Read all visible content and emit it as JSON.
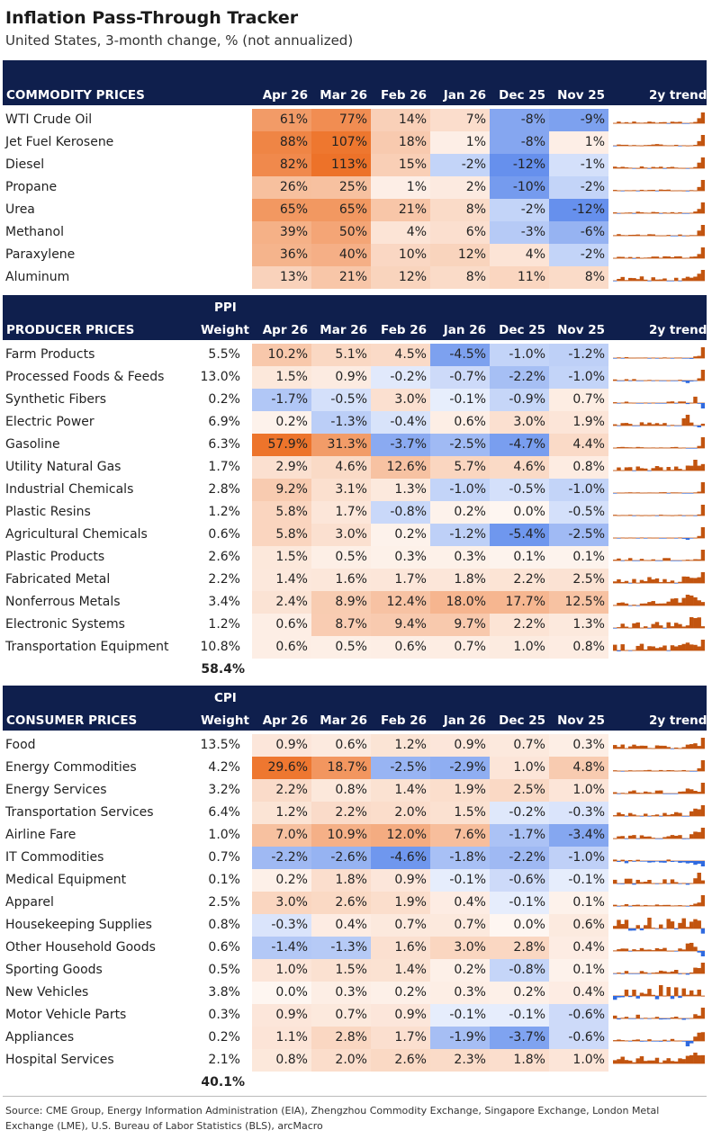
{
  "title": "Inflation Pass-Through Tracker",
  "subtitle": "United States, 3-month change, % (not annualized)",
  "months": [
    "Apr 26",
    "Mar 26",
    "Feb 26",
    "Jan 26",
    "Dec 25",
    "Nov 25"
  ],
  "trend_label": "2y trend",
  "colors": {
    "header_bg": "#0f1f4d",
    "positive": "#ec6a1c",
    "negative": "#3f74e8",
    "spark_pos": "#c2540f",
    "spark_neg": "#2f6ae0"
  },
  "chart_data": [
    {
      "type": "table",
      "section": "commodity",
      "header": "COMMODITY PRICES",
      "rows": [
        {
          "name": "WTI Crude Oil",
          "values": [
            "61%",
            "77%",
            "14%",
            "7%",
            "-8%",
            "-9%"
          ],
          "num": [
            61,
            77,
            14,
            7,
            -8,
            -9
          ]
        },
        {
          "name": "Jet Fuel Kerosene",
          "values": [
            "88%",
            "107%",
            "18%",
            "1%",
            "-8%",
            "1%"
          ],
          "num": [
            88,
            107,
            18,
            1,
            -8,
            1
          ]
        },
        {
          "name": "Diesel",
          "values": [
            "82%",
            "113%",
            "15%",
            "-2%",
            "-12%",
            "-1%"
          ],
          "num": [
            82,
            113,
            15,
            -2,
            -12,
            -1
          ]
        },
        {
          "name": "Propane",
          "values": [
            "26%",
            "25%",
            "1%",
            "2%",
            "-10%",
            "-2%"
          ],
          "num": [
            26,
            25,
            1,
            2,
            -10,
            -2
          ]
        },
        {
          "name": "Urea",
          "values": [
            "65%",
            "65%",
            "21%",
            "8%",
            "-2%",
            "-12%"
          ],
          "num": [
            65,
            65,
            21,
            8,
            -2,
            -12
          ]
        },
        {
          "name": "Methanol",
          "values": [
            "39%",
            "50%",
            "4%",
            "6%",
            "-3%",
            "-6%"
          ],
          "num": [
            39,
            50,
            4,
            6,
            -3,
            -6
          ]
        },
        {
          "name": "Paraxylene",
          "values": [
            "36%",
            "40%",
            "10%",
            "12%",
            "4%",
            "-2%"
          ],
          "num": [
            36,
            40,
            10,
            12,
            4,
            -2
          ]
        },
        {
          "name": "Aluminum",
          "values": [
            "13%",
            "21%",
            "12%",
            "8%",
            "11%",
            "8%"
          ],
          "num": [
            13,
            21,
            12,
            8,
            11,
            8
          ]
        }
      ]
    },
    {
      "type": "table",
      "section": "ppi",
      "header_top": "PPI",
      "header": "PRODUCER PRICES",
      "weight_label": "Weight",
      "total_weight": "58.4%",
      "rows": [
        {
          "name": "Farm Products",
          "weight": "5.5%",
          "values": [
            "10.2%",
            "5.1%",
            "4.5%",
            "-4.5%",
            "-1.0%",
            "-1.2%"
          ],
          "num": [
            10.2,
            5.1,
            4.5,
            -4.5,
            -1.0,
            -1.2
          ]
        },
        {
          "name": "Processed Foods & Feeds",
          "weight": "13.0%",
          "values": [
            "1.5%",
            "0.9%",
            "-0.2%",
            "-0.7%",
            "-2.2%",
            "-1.0%"
          ],
          "num": [
            1.5,
            0.9,
            -0.2,
            -0.7,
            -2.2,
            -1.0
          ]
        },
        {
          "name": "Synthetic Fibers",
          "weight": "0.2%",
          "values": [
            "-1.7%",
            "-0.5%",
            "3.0%",
            "-0.1%",
            "-0.9%",
            "0.7%"
          ],
          "num": [
            -1.7,
            -0.5,
            3.0,
            -0.1,
            -0.9,
            0.7
          ]
        },
        {
          "name": "Electric Power",
          "weight": "6.9%",
          "values": [
            "0.2%",
            "-1.3%",
            "-0.4%",
            "0.6%",
            "3.0%",
            "1.9%"
          ],
          "num": [
            0.2,
            -1.3,
            -0.4,
            0.6,
            3.0,
            1.9
          ]
        },
        {
          "name": "Gasoline",
          "weight": "6.3%",
          "values": [
            "57.9%",
            "31.3%",
            "-3.7%",
            "-2.5%",
            "-4.7%",
            "4.4%"
          ],
          "num": [
            57.9,
            31.3,
            -3.7,
            -2.5,
            -4.7,
            4.4
          ]
        },
        {
          "name": "Utility Natural Gas",
          "weight": "1.7%",
          "values": [
            "2.9%",
            "4.6%",
            "12.6%",
            "5.7%",
            "4.6%",
            "0.8%"
          ],
          "num": [
            2.9,
            4.6,
            12.6,
            5.7,
            4.6,
            0.8
          ]
        },
        {
          "name": "Industrial Chemicals",
          "weight": "2.8%",
          "values": [
            "9.2%",
            "3.1%",
            "1.3%",
            "-1.0%",
            "-0.5%",
            "-1.0%"
          ],
          "num": [
            9.2,
            3.1,
            1.3,
            -1.0,
            -0.5,
            -1.0
          ]
        },
        {
          "name": "Plastic Resins",
          "weight": "1.2%",
          "values": [
            "5.8%",
            "1.7%",
            "-0.8%",
            "0.2%",
            "0.0%",
            "-0.5%"
          ],
          "num": [
            5.8,
            1.7,
            -0.8,
            0.2,
            0.0,
            -0.5
          ]
        },
        {
          "name": "Agricultural Chemicals",
          "weight": "0.6%",
          "values": [
            "5.8%",
            "3.0%",
            "0.2%",
            "-1.2%",
            "-5.4%",
            "-2.5%"
          ],
          "num": [
            5.8,
            3.0,
            0.2,
            -1.2,
            -5.4,
            -2.5
          ]
        },
        {
          "name": "Plastic Products",
          "weight": "2.6%",
          "values": [
            "1.5%",
            "0.5%",
            "0.3%",
            "0.3%",
            "0.1%",
            "0.1%"
          ],
          "num": [
            1.5,
            0.5,
            0.3,
            0.3,
            0.1,
            0.1
          ]
        },
        {
          "name": "Fabricated Metal",
          "weight": "2.2%",
          "values": [
            "1.4%",
            "1.6%",
            "1.7%",
            "1.8%",
            "2.2%",
            "2.5%"
          ],
          "num": [
            1.4,
            1.6,
            1.7,
            1.8,
            2.2,
            2.5
          ]
        },
        {
          "name": "Nonferrous Metals",
          "weight": "3.4%",
          "values": [
            "2.4%",
            "8.9%",
            "12.4%",
            "18.0%",
            "17.7%",
            "12.5%"
          ],
          "num": [
            2.4,
            8.9,
            12.4,
            18.0,
            17.7,
            12.5
          ]
        },
        {
          "name": "Electronic Systems",
          "weight": "1.2%",
          "values": [
            "0.6%",
            "8.7%",
            "9.4%",
            "9.7%",
            "2.2%",
            "1.3%"
          ],
          "num": [
            0.6,
            8.7,
            9.4,
            9.7,
            2.2,
            1.3
          ]
        },
        {
          "name": "Transportation Equipment",
          "weight": "10.8%",
          "values": [
            "0.6%",
            "0.5%",
            "0.6%",
            "0.7%",
            "1.0%",
            "0.8%"
          ],
          "num": [
            0.6,
            0.5,
            0.6,
            0.7,
            1.0,
            0.8
          ]
        }
      ]
    },
    {
      "type": "table",
      "section": "cpi",
      "header_top": "CPI",
      "header": "CONSUMER PRICES",
      "weight_label": "Weight",
      "total_weight": "40.1%",
      "rows": [
        {
          "name": "Food",
          "weight": "13.5%",
          "values": [
            "0.9%",
            "0.6%",
            "1.2%",
            "0.9%",
            "0.7%",
            "0.3%"
          ],
          "num": [
            0.9,
            0.6,
            1.2,
            0.9,
            0.7,
            0.3
          ]
        },
        {
          "name": "Energy Commodities",
          "weight": "4.2%",
          "values": [
            "29.6%",
            "18.7%",
            "-2.5%",
            "-2.9%",
            "1.0%",
            "4.8%"
          ],
          "num": [
            29.6,
            18.7,
            -2.5,
            -2.9,
            1.0,
            4.8
          ]
        },
        {
          "name": "Energy Services",
          "weight": "3.2%",
          "values": [
            "2.2%",
            "0.8%",
            "1.4%",
            "1.9%",
            "2.5%",
            "1.0%"
          ],
          "num": [
            2.2,
            0.8,
            1.4,
            1.9,
            2.5,
            1.0
          ]
        },
        {
          "name": "Transportation Services",
          "weight": "6.4%",
          "values": [
            "1.2%",
            "2.2%",
            "2.0%",
            "1.5%",
            "-0.2%",
            "-0.3%"
          ],
          "num": [
            1.2,
            2.2,
            2.0,
            1.5,
            -0.2,
            -0.3
          ]
        },
        {
          "name": "Airline Fare",
          "weight": "1.0%",
          "values": [
            "7.0%",
            "10.9%",
            "12.0%",
            "7.6%",
            "-1.7%",
            "-3.4%"
          ],
          "num": [
            7.0,
            10.9,
            12.0,
            7.6,
            -1.7,
            -3.4
          ]
        },
        {
          "name": "IT Commodities",
          "weight": "0.7%",
          "values": [
            "-2.2%",
            "-2.6%",
            "-4.6%",
            "-1.8%",
            "-2.2%",
            "-1.0%"
          ],
          "num": [
            -2.2,
            -2.6,
            -4.6,
            -1.8,
            -2.2,
            -1.0
          ]
        },
        {
          "name": "Medical Equipment",
          "weight": "0.1%",
          "values": [
            "0.2%",
            "1.8%",
            "0.9%",
            "-0.1%",
            "-0.6%",
            "-0.1%"
          ],
          "num": [
            0.2,
            1.8,
            0.9,
            -0.1,
            -0.6,
            -0.1
          ]
        },
        {
          "name": "Apparel",
          "weight": "2.5%",
          "values": [
            "3.0%",
            "2.6%",
            "1.9%",
            "0.4%",
            "-0.1%",
            "0.1%"
          ],
          "num": [
            3.0,
            2.6,
            1.9,
            0.4,
            -0.1,
            0.1
          ]
        },
        {
          "name": "Housekeeping Supplies",
          "weight": "0.8%",
          "values": [
            "-0.3%",
            "0.4%",
            "0.7%",
            "0.7%",
            "0.0%",
            "0.6%"
          ],
          "num": [
            -0.3,
            0.4,
            0.7,
            0.7,
            0.0,
            0.6
          ]
        },
        {
          "name": "Other Household Goods",
          "weight": "0.6%",
          "values": [
            "-1.4%",
            "-1.3%",
            "1.6%",
            "3.0%",
            "2.8%",
            "0.4%"
          ],
          "num": [
            -1.4,
            -1.3,
            1.6,
            3.0,
            2.8,
            0.4
          ]
        },
        {
          "name": "Sporting Goods",
          "weight": "0.5%",
          "values": [
            "1.0%",
            "1.5%",
            "1.4%",
            "0.2%",
            "-0.8%",
            "0.1%"
          ],
          "num": [
            1.0,
            1.5,
            1.4,
            0.2,
            -0.8,
            0.1
          ]
        },
        {
          "name": "New Vehicles",
          "weight": "3.8%",
          "values": [
            "0.0%",
            "0.3%",
            "0.2%",
            "0.3%",
            "0.2%",
            "0.4%"
          ],
          "num": [
            0.0,
            0.3,
            0.2,
            0.3,
            0.2,
            0.4
          ]
        },
        {
          "name": "Motor Vehicle Parts",
          "weight": "0.3%",
          "values": [
            "0.9%",
            "0.7%",
            "0.9%",
            "-0.1%",
            "-0.1%",
            "-0.6%"
          ],
          "num": [
            0.9,
            0.7,
            0.9,
            -0.1,
            -0.1,
            -0.6
          ]
        },
        {
          "name": "Appliances",
          "weight": "0.2%",
          "values": [
            "1.1%",
            "2.8%",
            "1.7%",
            "-1.9%",
            "-3.7%",
            "-0.6%"
          ],
          "num": [
            1.1,
            2.8,
            1.7,
            -1.9,
            -3.7,
            -0.6
          ]
        },
        {
          "name": "Hospital Services",
          "weight": "2.1%",
          "values": [
            "0.8%",
            "2.0%",
            "2.6%",
            "2.3%",
            "1.8%",
            "1.0%"
          ],
          "num": [
            0.8,
            2.0,
            2.6,
            2.3,
            1.8,
            1.0
          ]
        }
      ]
    }
  ],
  "source": "Source: CME Group, Energy Information Administration (EIA), Zhengzhou Commodity Exchange, Singapore Exchange, London Metal Exchange (LME), U.S. Bureau of Labor Statistics (BLS), arcMacro"
}
